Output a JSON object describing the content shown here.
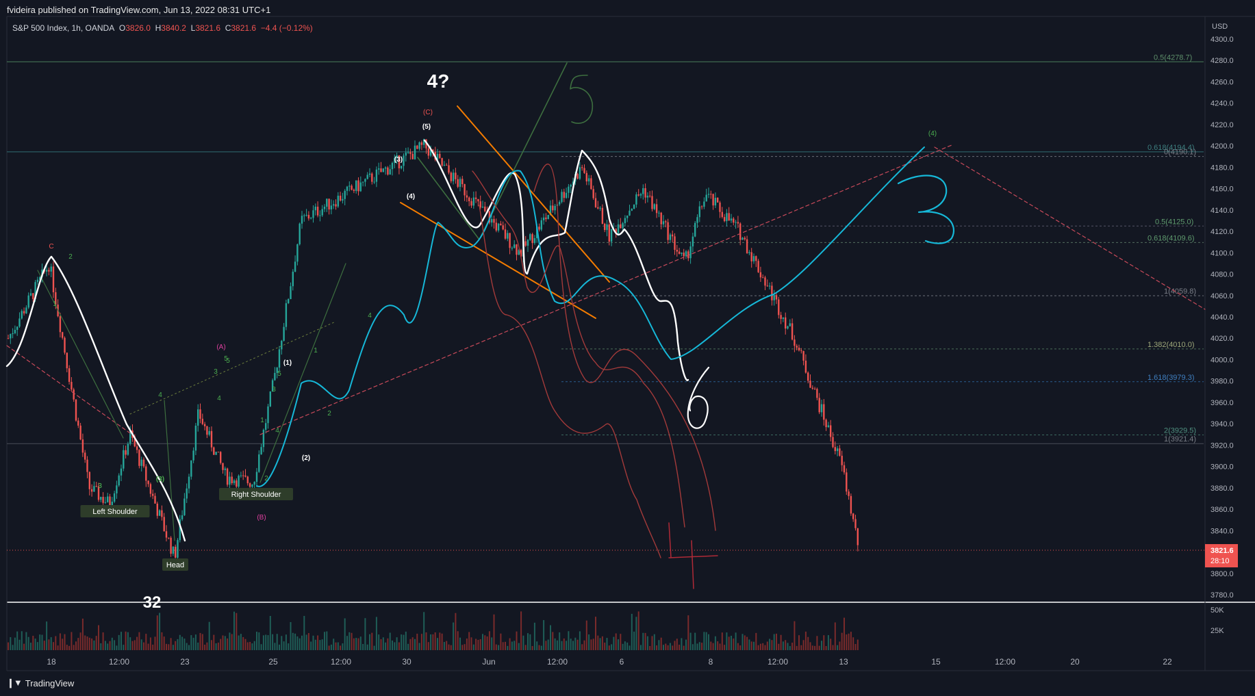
{
  "header": {
    "publisher_line": "fvideira published on TradingView.com, Jun 13, 2022 08:31 UTC+1",
    "symbol": "S&P 500 Index, 1h, OANDA",
    "ohlc": [
      {
        "label": "O",
        "value": "3826.0"
      },
      {
        "label": "H",
        "value": "3840.2"
      },
      {
        "label": "L",
        "value": "3821.6"
      },
      {
        "label": "C",
        "value": "3821.6"
      }
    ],
    "change": "−4.4 (−0.12%)"
  },
  "footer": {
    "brand": "TradingView",
    "logo_icon": "tradingview-logo-icon"
  },
  "price_axis": {
    "currency": "USD",
    "ticks": [
      "4300.0",
      "4280.0",
      "4260.0",
      "4240.0",
      "4220.0",
      "4200.0",
      "4180.0",
      "4160.0",
      "4140.0",
      "4120.0",
      "4100.0",
      "4080.0",
      "4060.0",
      "4040.0",
      "4020.0",
      "4000.0",
      "3980.0",
      "3960.0",
      "3940.0",
      "3920.0",
      "3900.0",
      "3880.0",
      "3860.0",
      "3840.0",
      "3820.0",
      "3800.0",
      "3780.0"
    ],
    "last_price": "3821.6",
    "countdown": "28:10"
  },
  "volume_axis": {
    "ticks": [
      "50K",
      "25K"
    ]
  },
  "time_axis": {
    "labels": [
      "18",
      "12:00",
      "23",
      "25",
      "12:00",
      "30",
      "Jun",
      "12:00",
      "6",
      "8",
      "12:00",
      "13",
      "15",
      "12:00",
      "20",
      "22"
    ]
  },
  "colors": {
    "background": "#131722",
    "up": "#26a69a",
    "down": "#ef5350",
    "accent_cyan": "#16b8d8",
    "orange": "#f57c00"
  },
  "chart_data": {
    "type": "candlestick",
    "symbol": "S&P 500 Index",
    "interval": "1h",
    "ylim": [
      3780,
      4300
    ],
    "last": 3821.6,
    "price_path": [
      {
        "x": "May 17",
        "y": 4020
      },
      {
        "x": "May 18",
        "y": 4090
      },
      {
        "x": "May 19",
        "y": 3880
      },
      {
        "x": "May 19",
        "y": 3865
      },
      {
        "x": "May 20",
        "y": 3930
      },
      {
        "x": "May 20",
        "y": 3815
      },
      {
        "x": "May 23",
        "y": 3950
      },
      {
        "x": "May 24",
        "y": 3890
      },
      {
        "x": "May 25",
        "y": 3885
      },
      {
        "x": "May 26",
        "y": 3980
      },
      {
        "x": "May 27",
        "y": 4130
      },
      {
        "x": "May 31",
        "y": 4200
      },
      {
        "x": "Jun 1",
        "y": 4100
      },
      {
        "x": "Jun 2",
        "y": 4180
      },
      {
        "x": "Jun 3",
        "y": 4115
      },
      {
        "x": "Jun 6",
        "y": 4160
      },
      {
        "x": "Jun 7",
        "y": 4090
      },
      {
        "x": "Jun 8",
        "y": 4155
      },
      {
        "x": "Jun 9",
        "y": 4120
      },
      {
        "x": "Jun 9",
        "y": 4020
      },
      {
        "x": "Jun 10",
        "y": 3900
      },
      {
        "x": "Jun 10",
        "y": 3821.6
      }
    ],
    "horizontal_levels": [
      {
        "label": "0.5(4278.7)",
        "value": 4278.7
      },
      {
        "label": "0.618(4194.4)",
        "value": 4194.4
      },
      {
        "label": "0(4190.1)",
        "value": 4190.1
      },
      {
        "label": "0.5(4125.0)",
        "value": 4125.0
      },
      {
        "label": "0.618(4109.6)",
        "value": 4109.6
      },
      {
        "label": "1(4059.8)",
        "value": 4059.8
      },
      {
        "label": "1.382(4010.0)",
        "value": 4010.0
      },
      {
        "label": "1.618(3979.3)",
        "value": 3979.3
      },
      {
        "label": "2(3929.5)",
        "value": 3929.5
      },
      {
        "label": "1(3921.4)",
        "value": 3921.4
      }
    ],
    "annotations": {
      "pattern_labels": [
        "Left Shoulder",
        "Head",
        "Right Shoulder"
      ],
      "wave_labels": [
        "C",
        "2",
        "1",
        "3",
        "4",
        "(3)",
        "3",
        "4",
        "5",
        "(A)",
        "(B)",
        "(1)",
        "(2)",
        "(3)",
        "(4)",
        "(5)",
        "(C)",
        "(4)",
        "3",
        "4",
        "5",
        "1",
        "2",
        "3",
        "4",
        "5",
        "1",
        "2"
      ],
      "handwritten": [
        "4?",
        "5",
        "6",
        "3",
        "4",
        "32"
      ]
    }
  }
}
